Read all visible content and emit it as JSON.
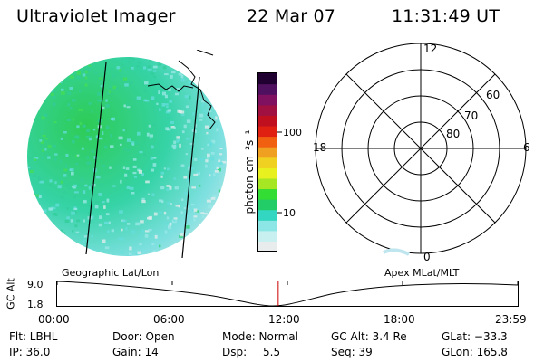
{
  "header": {
    "title": "Ultraviolet Imager",
    "date": "22 Mar 07",
    "time": "11:31:49 UT"
  },
  "colorbar": {
    "unit_label": "photon cm⁻²s⁻¹",
    "ticks": [
      {
        "label": "100",
        "value": 100
      },
      {
        "label": "10",
        "value": 10
      }
    ],
    "colors": [
      "#e8ecec",
      "#c9f0f0",
      "#8ce6e6",
      "#33d6c0",
      "#22cc66",
      "#33dd33",
      "#a6e622",
      "#e8f020",
      "#f0d020",
      "#f0a020",
      "#f06010",
      "#e02010",
      "#c01020",
      "#a01040",
      "#801060",
      "#501060",
      "#200030"
    ]
  },
  "polar": {
    "mlt_labels": {
      "top": "12",
      "left": "18",
      "right": "6",
      "bottom": "0"
    },
    "lat_labels": [
      "60",
      "70",
      "80"
    ]
  },
  "timeline": {
    "left_title": "Geographic Lat/Lon",
    "right_title": "Apex MLat/MLT",
    "axis_label": "GC Alt",
    "y_max": "9.0",
    "y_min": "1.8",
    "x_ticks": [
      "00:00",
      "06:00",
      "12:00",
      "18:00",
      "23:59"
    ],
    "current_time_fraction": 0.48
  },
  "status": {
    "flt": "Flt: LBHL",
    "ip": "IP: 36.0",
    "door": "Door: Open",
    "gain": "Gain: 14",
    "mode": "Mode: Normal",
    "dsp": "Dsp:",
    "dsp_val": "5.5",
    "gcalt": "GC Alt: 3.4 Re",
    "seq": "Seq: 39",
    "glat": "GLat: −33.3",
    "glon": "GLon: 165.8"
  },
  "colors": {
    "marker": "#cc0000"
  }
}
